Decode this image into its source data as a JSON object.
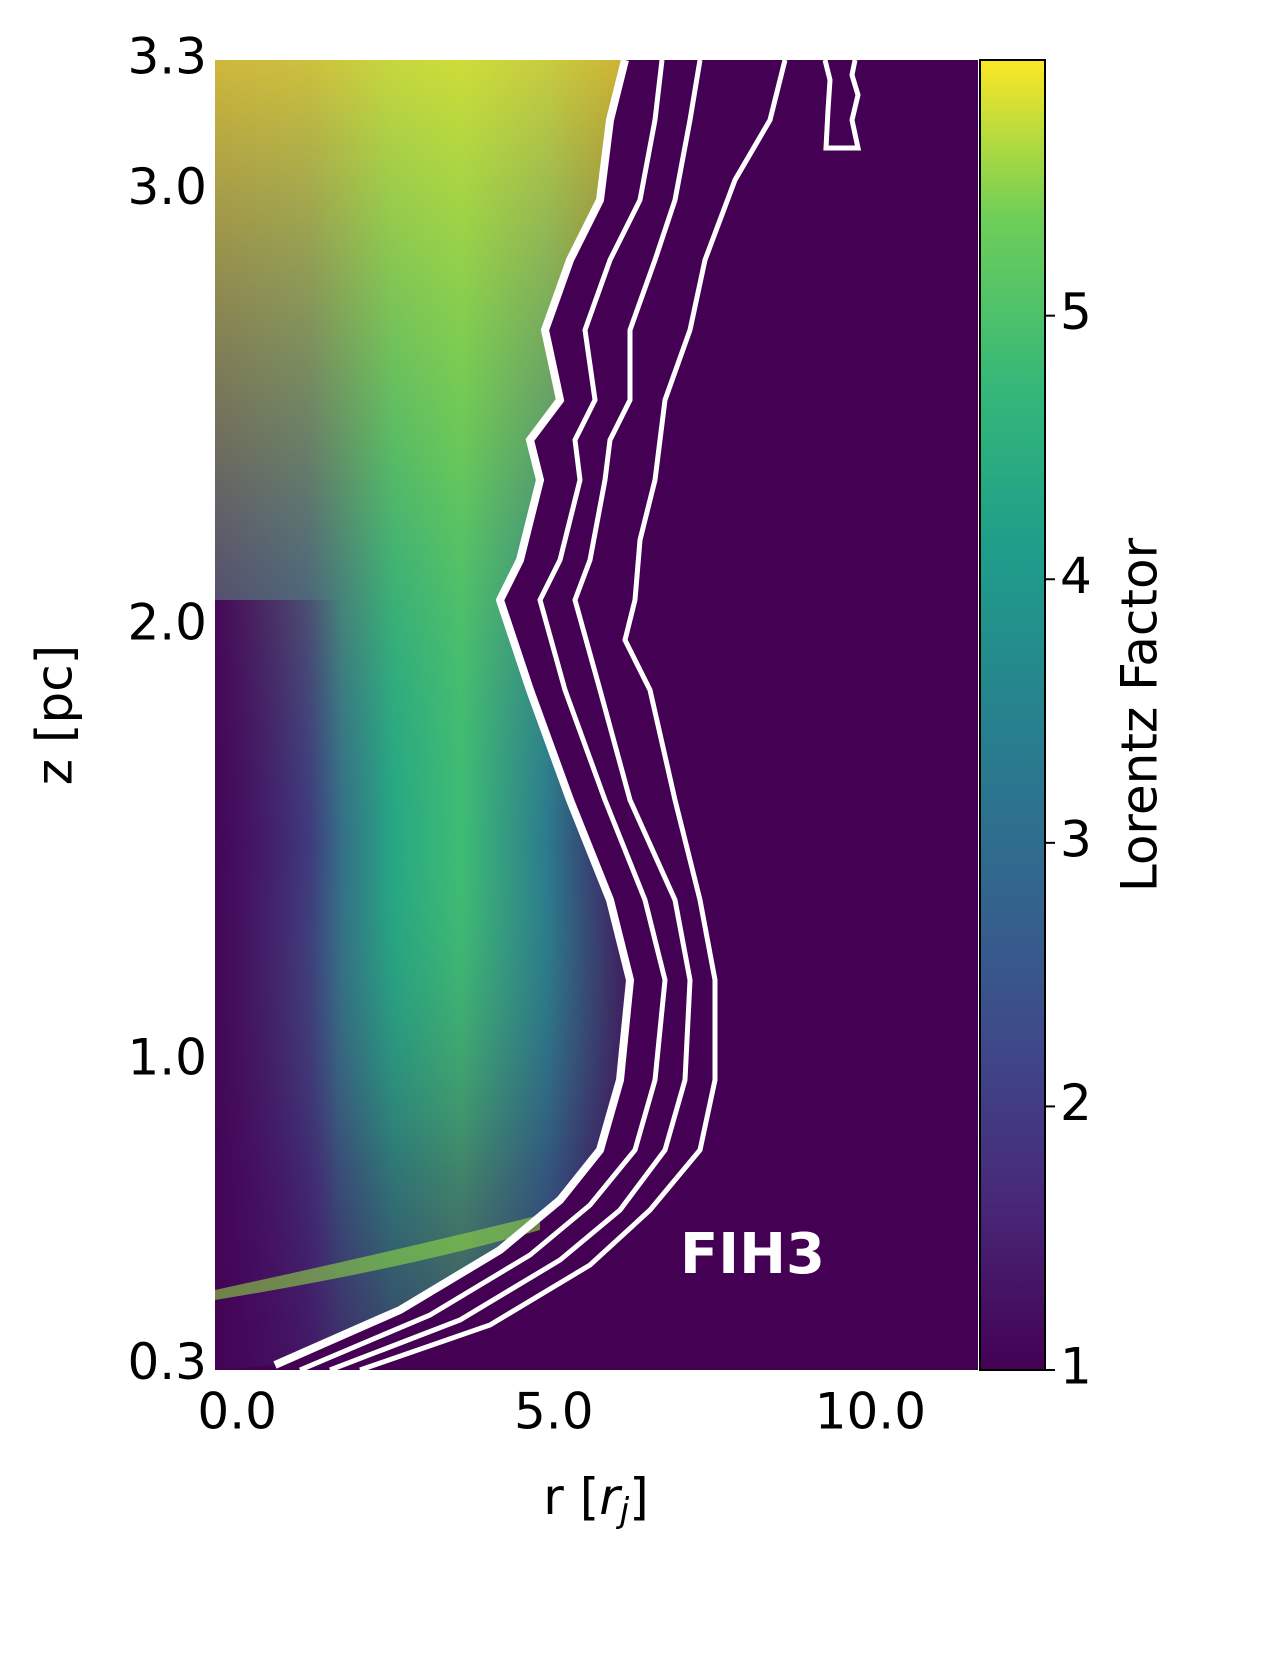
{
  "chart_data": {
    "type": "heatmap",
    "x_label": [
      "r [",
      "r",
      "j",
      "]"
    ],
    "y_label": "z [pc]",
    "xlim": [
      -0.35,
      11.7
    ],
    "xticks": [
      {
        "value": 0,
        "label": "0.0"
      },
      {
        "value": 5,
        "label": "5.0"
      },
      {
        "value": 10,
        "label": "10.0"
      }
    ],
    "ylim": [
      0.29,
      3.3
    ],
    "yticks": [
      0.3,
      {
        "value": 1,
        "label": "1.0"
      },
      {
        "value": 2,
        "label": "2.0"
      },
      {
        "value": 3,
        "label": "3.0"
      },
      3.3
    ],
    "colorbar": {
      "label": "Lorentz Factor",
      "colormap": "viridis",
      "clim": [
        1,
        5.97
      ],
      "ticks": [
        1,
        2,
        3,
        4,
        5
      ]
    },
    "annotation": "FIH3"
  }
}
